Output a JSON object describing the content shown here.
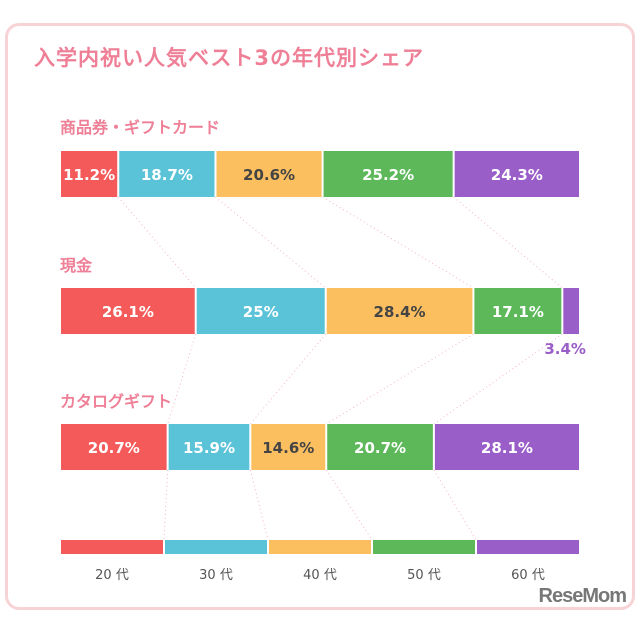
{
  "chart_data": {
    "type": "bar",
    "stacked": true,
    "orientation": "horizontal",
    "title": "入学内祝い人気ベスト3の年代別シェア",
    "categories": [
      "商品券・ギフトカード",
      "現金",
      "カタログギフト"
    ],
    "series": [
      {
        "name": "20 代",
        "color": "#f55a5a",
        "values": [
          11.2,
          26.1,
          20.7
        ],
        "labels": [
          "11.2%",
          "26.1%",
          "20.7%"
        ]
      },
      {
        "name": "30 代",
        "color": "#5bc3d8",
        "values": [
          18.7,
          25,
          15.9
        ],
        "labels": [
          "18.7%",
          "25%",
          "15.9%"
        ]
      },
      {
        "name": "40 代",
        "color": "#fbbf5f",
        "values": [
          20.6,
          28.4,
          14.6
        ],
        "labels": [
          "20.6%",
          "28.4%",
          "14.6%"
        ]
      },
      {
        "name": "50 代",
        "color": "#5db85a",
        "values": [
          25.2,
          17.1,
          20.7
        ],
        "labels": [
          "25.2%",
          "17.1%",
          "20.7%"
        ]
      },
      {
        "name": "60 代",
        "color": "#9a5ec9",
        "values": [
          24.3,
          3.4,
          28.1
        ],
        "labels": [
          "24.3%",
          "3.4%",
          "28.1%"
        ]
      }
    ],
    "legend_placement": "bottom"
  },
  "logo": "ReseMom"
}
